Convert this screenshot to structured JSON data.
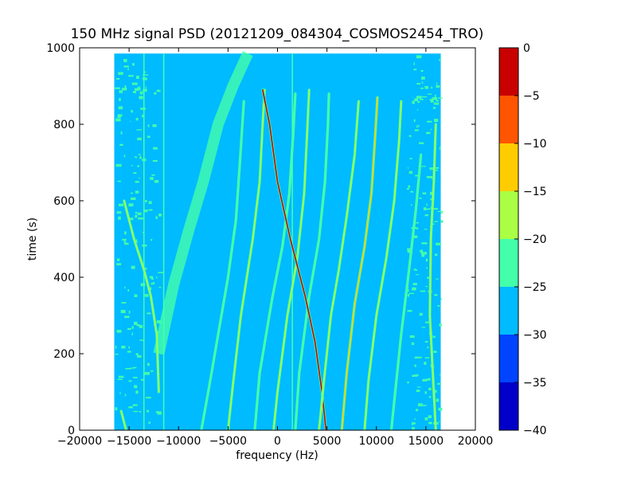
{
  "chart_data": {
    "type": "heatmap",
    "title": "150 MHz signal PSD (20121209_084304_COSMOS2454_TRO)",
    "xlabel": "frequency (Hz)",
    "ylabel": "time (s)",
    "xlim": [
      -20000,
      20000
    ],
    "ylim": [
      0,
      1000
    ],
    "xticks": [
      -20000,
      -15000,
      -10000,
      -5000,
      0,
      5000,
      10000,
      15000,
      20000
    ],
    "yticks": [
      0,
      200,
      400,
      600,
      800,
      1000
    ],
    "data_extent": {
      "x": [
        -16500,
        16500
      ],
      "y": [
        0,
        985
      ]
    },
    "background_level_db": -27,
    "colorbar": {
      "levels": [
        -40,
        -35,
        -30,
        -25,
        -20,
        -15,
        -10,
        -5,
        0
      ],
      "colors": [
        "#0000c8",
        "#0044ff",
        "#00bbff",
        "#44ffaa",
        "#aaff44",
        "#ffcc00",
        "#ff5500",
        "#c80000"
      ],
      "ticklabels": [
        "0",
        "−5",
        "−10",
        "−15",
        "−20",
        "−25",
        "−30",
        "−35",
        "−40"
      ]
    },
    "series": [
      {
        "points": [
          [
            -7700,
            0
          ],
          [
            -7000,
            100
          ],
          [
            -6000,
            250
          ],
          [
            -5000,
            400
          ],
          [
            -4200,
            550
          ],
          [
            -3800,
            700
          ],
          [
            -3400,
            860
          ]
        ],
        "level_db": -21
      },
      {
        "points": [
          [
            -5000,
            0
          ],
          [
            -4500,
            120
          ],
          [
            -3700,
            300
          ],
          [
            -2500,
            500
          ],
          [
            -1800,
            650
          ],
          [
            -1500,
            800
          ],
          [
            -1300,
            890
          ]
        ],
        "level_db": -18
      },
      {
        "points": [
          [
            -2300,
            0
          ],
          [
            -1800,
            150
          ],
          [
            -500,
            350
          ],
          [
            500,
            480
          ],
          [
            1200,
            620
          ],
          [
            1600,
            780
          ],
          [
            1800,
            880
          ]
        ],
        "level_db": -22
      },
      {
        "points": [
          [
            -400,
            0
          ],
          [
            0,
            100
          ],
          [
            1000,
            300
          ],
          [
            2000,
            450
          ],
          [
            2700,
            620
          ],
          [
            3000,
            780
          ],
          [
            3200,
            890
          ]
        ],
        "level_db": -19
      },
      {
        "points": [
          [
            1800,
            0
          ],
          [
            2200,
            150
          ],
          [
            3200,
            350
          ],
          [
            4200,
            500
          ],
          [
            4800,
            650
          ],
          [
            5100,
            800
          ],
          [
            5200,
            880
          ]
        ],
        "level_db": -23
      },
      {
        "points": [
          [
            -1500,
            890
          ],
          [
            -800,
            800
          ],
          [
            0,
            650
          ],
          [
            1300,
            500
          ],
          [
            2800,
            350
          ],
          [
            3800,
            230
          ],
          [
            4500,
            100
          ],
          [
            4900,
            0
          ]
        ],
        "level_db": -5
      },
      {
        "points": [
          [
            4200,
            0
          ],
          [
            4700,
            130
          ],
          [
            5400,
            300
          ],
          [
            6200,
            420
          ],
          [
            7000,
            560
          ],
          [
            7800,
            720
          ],
          [
            8200,
            860
          ]
        ],
        "level_db": -16
      },
      {
        "points": [
          [
            6500,
            0
          ],
          [
            7000,
            150
          ],
          [
            7800,
            330
          ],
          [
            8800,
            480
          ],
          [
            9500,
            620
          ],
          [
            9900,
            780
          ],
          [
            10100,
            870
          ]
        ],
        "level_db": -12
      },
      {
        "points": [
          [
            8800,
            0
          ],
          [
            9200,
            130
          ],
          [
            10000,
            300
          ],
          [
            11000,
            450
          ],
          [
            11800,
            600
          ],
          [
            12300,
            760
          ],
          [
            12500,
            860
          ]
        ],
        "level_db": -20
      },
      {
        "points": [
          [
            11500,
            0
          ],
          [
            11900,
            100
          ],
          [
            12500,
            250
          ],
          [
            13300,
            420
          ],
          [
            14000,
            580
          ],
          [
            14500,
            720
          ]
        ],
        "level_db": -22
      },
      {
        "points": [
          [
            -15500,
            600
          ],
          [
            -14500,
            500
          ],
          [
            -13500,
            420
          ],
          [
            -12800,
            350
          ],
          [
            -12200,
            250
          ],
          [
            -12000,
            100
          ]
        ],
        "level_db": -16
      },
      {
        "points": [
          [
            16000,
            0
          ],
          [
            15700,
            150
          ],
          [
            15400,
            300
          ],
          [
            15500,
            500
          ],
          [
            15800,
            650
          ],
          [
            16000,
            800
          ]
        ],
        "level_db": -16
      },
      {
        "points": [
          [
            -15800,
            50
          ],
          [
            -15300,
            0
          ]
        ],
        "level_db": -16
      }
    ],
    "vertical_lines": [
      {
        "x": 1500,
        "level_db": -22
      },
      {
        "x": -11500,
        "level_db": -23
      },
      {
        "x": -13500,
        "level_db": -24
      }
    ],
    "noise_band": [
      [
        -12000,
        200
      ],
      [
        -10500,
        380
      ],
      [
        -9000,
        520
      ],
      [
        -7500,
        650
      ],
      [
        -6000,
        800
      ],
      [
        -4500,
        900
      ],
      [
        -3000,
        985
      ]
    ],
    "edge_noise": [
      [
        -16500,
        -12000
      ],
      [
        13000,
        16500
      ]
    ]
  }
}
